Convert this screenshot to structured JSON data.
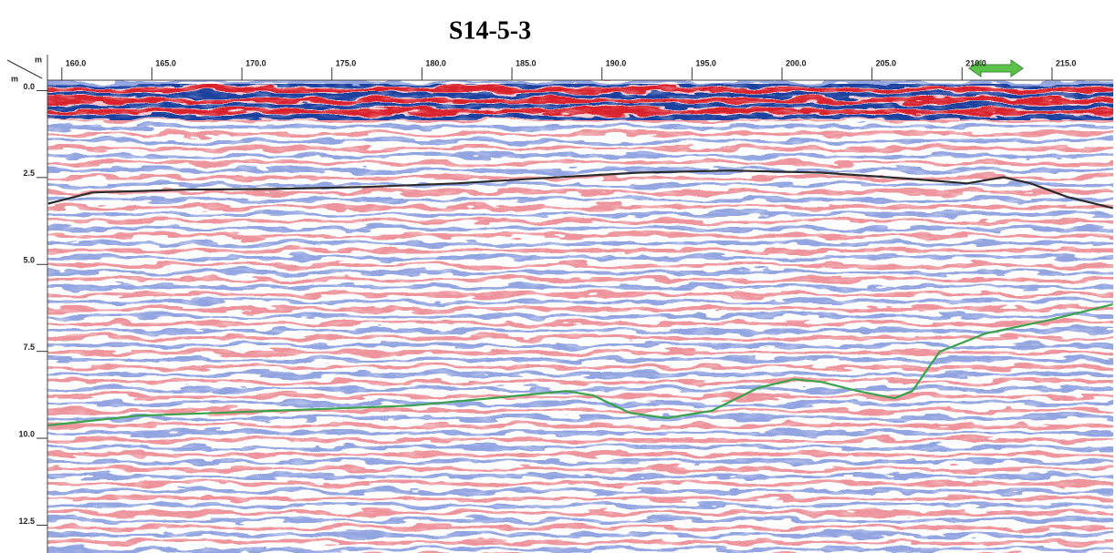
{
  "chart_data": {
    "type": "line",
    "title": "S14-5-3",
    "x_unit": "m",
    "y_unit": "m",
    "xlim": [
      159.2,
      218.4
    ],
    "xticks": [
      {
        "value": 160,
        "label": "160.0"
      },
      {
        "value": 165,
        "label": "165.0"
      },
      {
        "value": 170,
        "label": "170.0"
      },
      {
        "value": 175,
        "label": "175.0"
      },
      {
        "value": 180,
        "label": "180.0"
      },
      {
        "value": 185,
        "label": "185.0"
      },
      {
        "value": 190,
        "label": "190.0"
      },
      {
        "value": 195,
        "label": "195.0"
      },
      {
        "value": 200,
        "label": "200.0"
      },
      {
        "value": 205,
        "label": "205.0"
      },
      {
        "value": 210,
        "label": "210.0"
      },
      {
        "value": 215,
        "label": "215.0"
      }
    ],
    "ylim": [
      -0.3,
      13.3
    ],
    "y_inverted": true,
    "yticks": [
      {
        "value": 0,
        "label": "0.0"
      },
      2.5,
      {
        "value": 5,
        "label": "5.0"
      },
      7.5,
      {
        "value": 10,
        "label": "10.0"
      },
      12.5
    ],
    "series": [
      {
        "color": "#2b2b2b",
        "x": [
          159.24,
          161.67,
          166.73,
          171.8,
          176.86,
          181.92,
          186.99,
          192.05,
          197.11,
          202.18,
          207.24,
          210.28,
          212.3,
          213.82,
          215.85,
          218.38
        ],
        "values": [
          3.25,
          2.93,
          2.85,
          2.83,
          2.77,
          2.67,
          2.51,
          2.36,
          2.3,
          2.36,
          2.54,
          2.67,
          2.49,
          2.67,
          3.06,
          3.38
        ]
      },
      {
        "color": "#3aa24a",
        "x": [
          159.24,
          164.2,
          171.8,
          179.39,
          184.46,
          188.0,
          189.52,
          191.54,
          193.57,
          196.1,
          198.63,
          200.66,
          202.18,
          204.2,
          206.23,
          207.24,
          208.76,
          211.29,
          214.84,
          218.38
        ],
        "values": [
          9.63,
          9.35,
          9.21,
          9.06,
          8.82,
          8.64,
          8.77,
          9.27,
          9.42,
          9.21,
          8.56,
          8.3,
          8.38,
          8.64,
          8.85,
          8.64,
          7.51,
          6.99,
          6.6,
          6.15
        ]
      }
    ]
  }
}
